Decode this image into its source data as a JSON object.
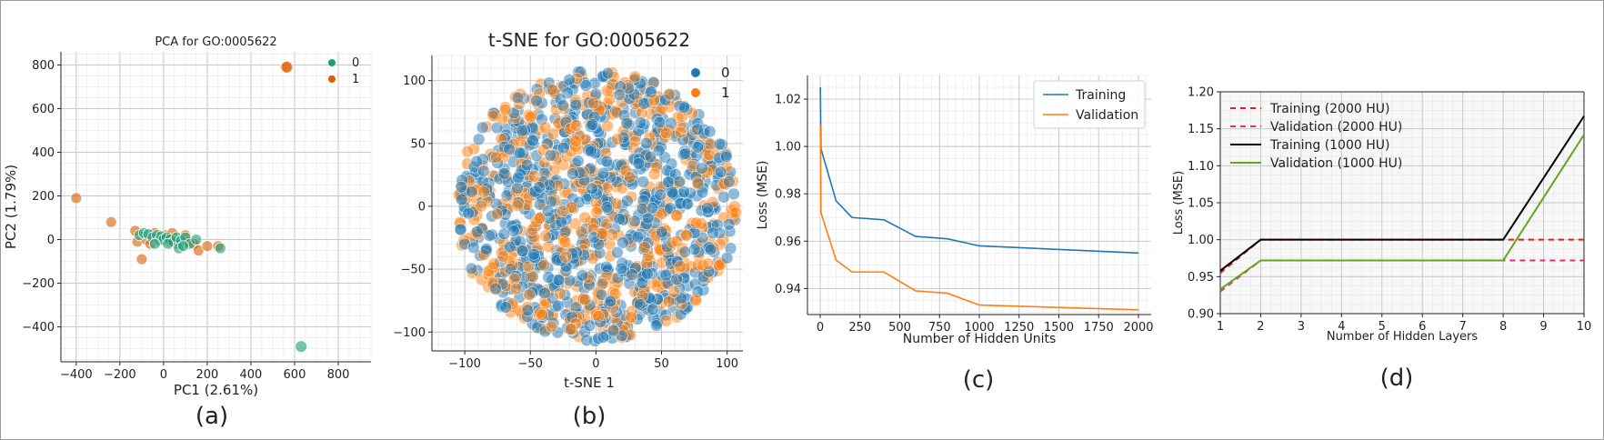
{
  "colors": {
    "pca_class0": "#1b9e77",
    "pca_class1": "#d95f02",
    "tsne_class0": "#1f77b4",
    "tsne_class1": "#ff7f0e",
    "training": "#1f77b4",
    "validation": "#ff7f0e",
    "d_train2000": "#e41a1c",
    "d_val2000": "#e7298a",
    "d_train1000": "#000000",
    "d_val1000": "#66a61e"
  },
  "captions": {
    "a": "(a)",
    "b": "(b)",
    "c": "(c)",
    "d": "(d)"
  },
  "chart_data": [
    {
      "id": "a",
      "type": "scatter",
      "title": "PCA for GO:0005622",
      "xlabel": "PC1 (2.61%)",
      "ylabel": "PC2 (1.79%)",
      "xlim": [
        -470,
        950
      ],
      "ylim": [
        -560,
        860
      ],
      "xticks": [
        -400,
        -200,
        0,
        200,
        400,
        600,
        800
      ],
      "xtick_labels": [
        "−400",
        "−200",
        "0",
        "200",
        "400",
        "600",
        "800"
      ],
      "yticks": [
        -400,
        -200,
        0,
        200,
        400,
        600,
        800
      ],
      "ytick_labels": [
        "−400",
        "−200",
        "0",
        "200",
        "400",
        "600",
        "800"
      ],
      "grid": true,
      "legend_position": "top-right",
      "series": [
        {
          "name": "0",
          "color_key": "pca_class0",
          "points": [
            [
              -110,
              20
            ],
            [
              -90,
              30
            ],
            [
              -70,
              25
            ],
            [
              -50,
              10
            ],
            [
              -30,
              20
            ],
            [
              -20,
              -5
            ],
            [
              -10,
              15
            ],
            [
              0,
              0
            ],
            [
              15,
              10
            ],
            [
              30,
              0
            ],
            [
              45,
              -10
            ],
            [
              60,
              10
            ],
            [
              80,
              -5
            ],
            [
              100,
              10
            ],
            [
              120,
              -20
            ],
            [
              -40,
              -20
            ],
            [
              20,
              -20
            ],
            [
              70,
              -40
            ],
            [
              90,
              -30
            ],
            [
              150,
              0
            ],
            [
              260,
              -40
            ],
            [
              630,
              -490
            ]
          ]
        },
        {
          "name": "1",
          "color_key": "pca_class1",
          "points": [
            [
              -400,
              190
            ],
            [
              -240,
              80
            ],
            [
              -130,
              40
            ],
            [
              -120,
              -10
            ],
            [
              -100,
              -90
            ],
            [
              -80,
              0
            ],
            [
              -60,
              -20
            ],
            [
              -40,
              30
            ],
            [
              0,
              0
            ],
            [
              10,
              20
            ],
            [
              30,
              -10
            ],
            [
              40,
              30
            ],
            [
              60,
              -20
            ],
            [
              100,
              20
            ],
            [
              110,
              -10
            ],
            [
              140,
              -20
            ],
            [
              160,
              -50
            ],
            [
              200,
              -30
            ],
            [
              250,
              -30
            ],
            [
              560,
              790
            ],
            [
              565,
              790
            ]
          ]
        }
      ]
    },
    {
      "id": "b",
      "type": "scatter",
      "title": "t-SNE for GO:0005622",
      "xlabel": "t-SNE 1",
      "ylabel": "",
      "xlim": [
        -125,
        112
      ],
      "ylim": [
        -115,
        120
      ],
      "xticks": [
        -100,
        -50,
        0,
        50,
        100
      ],
      "xtick_labels": [
        "−100",
        "−50",
        "0",
        "50",
        "100"
      ],
      "yticks": [
        -100,
        -50,
        0,
        50,
        100
      ],
      "ytick_labels": [
        "−100",
        "−50",
        "0",
        "50",
        "100"
      ],
      "grid": true,
      "legend_position": "top-right",
      "cloud": {
        "center": [
          0,
          0
        ],
        "radius": 108,
        "n_points": 1300,
        "fraction_class1": 0.4
      },
      "series": [
        {
          "name": "0",
          "color_key": "tsne_class0"
        },
        {
          "name": "1",
          "color_key": "tsne_class1"
        }
      ]
    },
    {
      "id": "c",
      "type": "line",
      "xlabel": "Number of Hidden Units",
      "ylabel": "Loss (MSE)",
      "xlim": [
        -80,
        2080
      ],
      "ylim": [
        0.929,
        1.03
      ],
      "xticks": [
        0,
        250,
        500,
        750,
        1000,
        1250,
        1500,
        1750,
        2000
      ],
      "yticks": [
        0.94,
        0.96,
        0.98,
        1.0,
        1.02
      ],
      "ytick_labels": [
        "0.94",
        "0.96",
        "0.98",
        "1.00",
        "1.02"
      ],
      "grid": true,
      "legend_position": "top-right",
      "x": [
        1,
        5,
        100,
        200,
        400,
        600,
        800,
        1000,
        2000
      ],
      "series": [
        {
          "name": "Training",
          "color_key": "training",
          "values": [
            1.025,
            0.999,
            0.977,
            0.97,
            0.969,
            0.962,
            0.961,
            0.958,
            0.955
          ]
        },
        {
          "name": "Validation",
          "color_key": "validation",
          "values": [
            1.009,
            0.972,
            0.952,
            0.947,
            0.947,
            0.939,
            0.938,
            0.933,
            0.931
          ]
        }
      ]
    },
    {
      "id": "d",
      "type": "line",
      "xlabel": "Number of Hidden Layers",
      "ylabel": "Loss (MSE)",
      "xlim": [
        1,
        10
      ],
      "ylim": [
        0.9,
        1.2
      ],
      "xticks": [
        1,
        2,
        3,
        4,
        5,
        6,
        7,
        8,
        9,
        10
      ],
      "yticks": [
        0.9,
        0.95,
        1.0,
        1.05,
        1.1,
        1.15,
        1.2
      ],
      "ytick_labels": [
        "0.90",
        "0.95",
        "1.00",
        "1.05",
        "1.10",
        "1.15",
        "1.20"
      ],
      "grid": true,
      "legend_position": "top-left",
      "series": [
        {
          "name": "Training (2000 HU)",
          "color_key": "d_train2000",
          "dash": true,
          "x": [
            1,
            2,
            8,
            10
          ],
          "values": [
            0.955,
            1.0,
            1.0,
            1.0
          ]
        },
        {
          "name": "Validation (2000 HU)",
          "color_key": "d_val2000",
          "dash": true,
          "x": [
            1,
            2,
            8,
            10
          ],
          "values": [
            0.93,
            0.972,
            0.972,
            0.972
          ]
        },
        {
          "name": "Training (1000 HU)",
          "color_key": "d_train1000",
          "dash": false,
          "x": [
            1,
            2,
            8,
            10
          ],
          "values": [
            0.958,
            1.0,
            1.0,
            1.167
          ]
        },
        {
          "name": "Validation (1000 HU)",
          "color_key": "d_val1000",
          "dash": false,
          "x": [
            1,
            2,
            8,
            10
          ],
          "values": [
            0.933,
            0.972,
            0.972,
            1.142
          ]
        }
      ]
    }
  ]
}
